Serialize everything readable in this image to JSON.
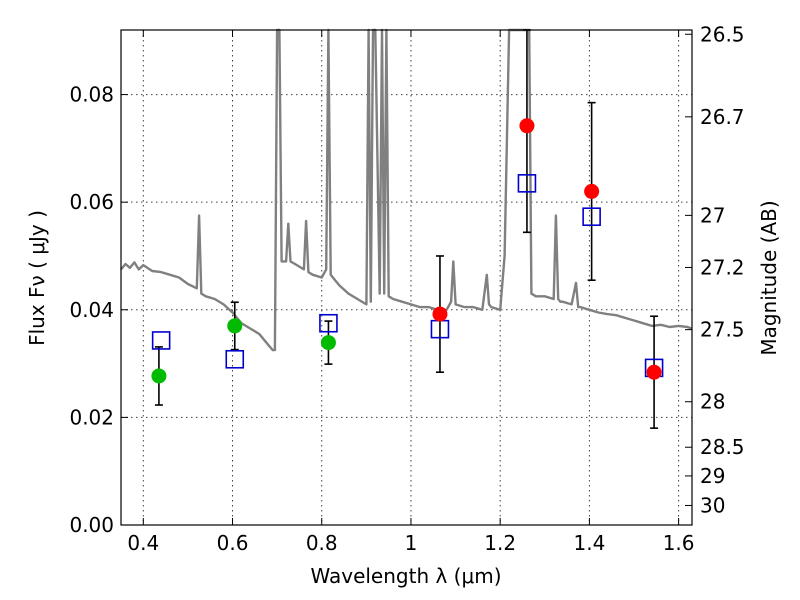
{
  "chart_data": {
    "type": "scatter",
    "xlabel": "Wavelength  λ (μm)",
    "ylabel": "Flux  Fν  ( μJy )",
    "y2label": "Magnitude (AB)",
    "xlim": [
      0.35,
      1.63
    ],
    "ylim": [
      0.0,
      0.092
    ],
    "xticks": [
      "0.4",
      "0.6",
      "0.8",
      "1",
      "1.2",
      "1.4",
      "1.6"
    ],
    "yticks": [
      "0.00",
      "0.02",
      "0.04",
      "0.06",
      "0.08"
    ],
    "mag_ticks": [
      "26.5",
      "26.7",
      "27",
      "27.2",
      "27.5",
      "28",
      "28.5",
      "29",
      "30"
    ],
    "grid": true,
    "colors": {
      "spectrum": "#808080",
      "green_points": "#00bb00",
      "red_points": "#ff0000",
      "model_squares": "#0000cc",
      "errorbars": "#000000"
    },
    "spectrum": {
      "x": [
        0.35,
        0.36,
        0.37,
        0.38,
        0.39,
        0.4,
        0.42,
        0.44,
        0.46,
        0.48,
        0.5,
        0.52,
        0.525,
        0.53,
        0.54,
        0.56,
        0.58,
        0.6,
        0.62,
        0.64,
        0.66,
        0.68,
        0.69,
        0.695,
        0.7,
        0.705,
        0.71,
        0.72,
        0.725,
        0.73,
        0.74,
        0.76,
        0.765,
        0.77,
        0.78,
        0.8,
        0.81,
        0.815,
        0.82,
        0.83,
        0.84,
        0.86,
        0.88,
        0.9,
        0.905,
        0.91,
        0.915,
        0.92,
        0.93,
        0.935,
        0.94,
        0.945,
        0.95,
        0.96,
        0.98,
        1.0,
        1.02,
        1.04,
        1.06,
        1.08,
        1.09,
        1.095,
        1.1,
        1.12,
        1.14,
        1.16,
        1.17,
        1.175,
        1.18,
        1.2,
        1.21,
        1.22,
        1.225,
        1.23,
        1.24,
        1.25,
        1.255,
        1.26,
        1.265,
        1.27,
        1.28,
        1.3,
        1.32,
        1.325,
        1.33,
        1.335,
        1.34,
        1.36,
        1.37,
        1.375,
        1.38,
        1.4,
        1.42,
        1.44,
        1.46,
        1.48,
        1.5,
        1.52,
        1.54,
        1.56,
        1.58,
        1.6,
        1.62,
        1.63
      ],
      "y": [
        0.0475,
        0.0485,
        0.0478,
        0.0488,
        0.0475,
        0.0483,
        0.0472,
        0.047,
        0.0465,
        0.046,
        0.0448,
        0.044,
        0.0575,
        0.043,
        0.0425,
        0.042,
        0.041,
        0.0395,
        0.0375,
        0.0365,
        0.0355,
        0.0335,
        0.0325,
        0.0325,
        0.095,
        0.095,
        0.049,
        0.049,
        0.056,
        0.049,
        0.0485,
        0.0475,
        0.0565,
        0.047,
        0.0465,
        0.046,
        0.0475,
        0.095,
        0.0465,
        0.0455,
        0.0445,
        0.043,
        0.042,
        0.041,
        0.095,
        0.0415,
        0.095,
        0.095,
        0.043,
        0.095,
        0.043,
        0.095,
        0.0425,
        0.042,
        0.0415,
        0.041,
        0.0405,
        0.0405,
        0.04,
        0.04,
        0.0415,
        0.049,
        0.041,
        0.0405,
        0.0405,
        0.04,
        0.0465,
        0.041,
        0.0405,
        0.04,
        0.05,
        0.095,
        0.095,
        0.095,
        0.095,
        0.095,
        0.095,
        0.095,
        0.095,
        0.043,
        0.0425,
        0.0425,
        0.042,
        0.0575,
        0.042,
        0.0415,
        0.0415,
        0.041,
        0.045,
        0.0405,
        0.0405,
        0.04,
        0.0395,
        0.0392,
        0.039,
        0.0385,
        0.038,
        0.0375,
        0.037,
        0.0372,
        0.0368,
        0.037,
        0.0368,
        0.0365
      ]
    },
    "green_points": {
      "x": [
        0.435,
        0.605,
        0.815
      ],
      "y": [
        0.0277,
        0.037,
        0.0339
      ],
      "err_low": [
        0.0054,
        0.0044,
        0.004
      ],
      "err_high": [
        0.0054,
        0.0044,
        0.004
      ]
    },
    "red_points": {
      "x": [
        1.065,
        1.26,
        1.405,
        1.545
      ],
      "y": [
        0.0392,
        0.0742,
        0.062,
        0.0284
      ],
      "err_low": [
        0.0108,
        0.0198,
        0.0165,
        0.0104
      ],
      "err_high": [
        0.0108,
        0.0198,
        0.0165,
        0.0104
      ]
    },
    "model_squares": {
      "x": [
        0.44,
        0.605,
        0.815,
        1.065,
        1.26,
        1.405,
        1.545
      ],
      "y": [
        0.0343,
        0.0308,
        0.0375,
        0.0364,
        0.0635,
        0.0573,
        0.0292
      ]
    }
  }
}
